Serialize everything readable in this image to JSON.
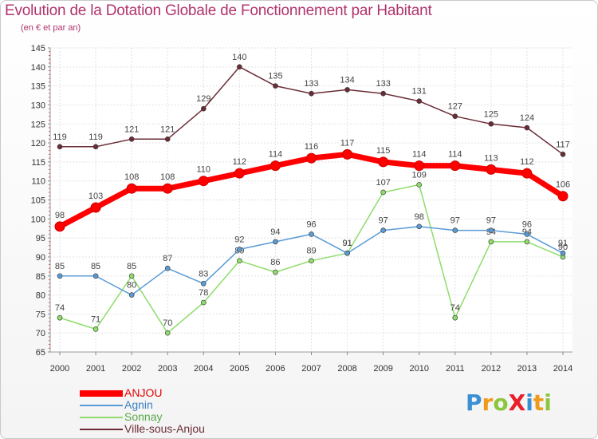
{
  "title": "Evolution de la Dotation Globale de Fonctionnement par Habitant",
  "subtitle": "(en € et par an)",
  "logo": {
    "text": "ProXiti",
    "letters": [
      {
        "ch": "P",
        "color": "#3b8fd3"
      },
      {
        "ch": "r",
        "color": "#f09a1c"
      },
      {
        "ch": "o",
        "color": "#8cc63f"
      },
      {
        "ch": "X",
        "color": "#e8202a"
      },
      {
        "ch": "i",
        "color": "#3b8fd3"
      },
      {
        "ch": "t",
        "color": "#f09a1c"
      },
      {
        "ch": "i",
        "color": "#8cc63f"
      }
    ]
  },
  "chart_data": {
    "type": "line",
    "title": "Evolution de la Dotation Globale de Fonctionnement par Habitant",
    "subtitle": "(en € et par an)",
    "xlabel": "",
    "ylabel": "",
    "x": [
      "2000",
      "2001",
      "2002",
      "2003",
      "2004",
      "2005",
      "2006",
      "2007",
      "2008",
      "2009",
      "2010",
      "2011",
      "2012",
      "2013",
      "2014"
    ],
    "ylim": [
      65,
      145
    ],
    "yticks": [
      65,
      70,
      75,
      80,
      85,
      90,
      95,
      100,
      105,
      110,
      115,
      120,
      125,
      130,
      135,
      140,
      145
    ],
    "grid": true,
    "legend_position": "bottom-left",
    "series": [
      {
        "name": "ANJOU",
        "color": "#ff0000",
        "values": [
          98,
          103,
          108,
          108,
          110,
          112,
          114,
          116,
          117,
          115,
          114,
          114,
          113,
          112,
          106
        ]
      },
      {
        "name": "Agnin",
        "color": "#5b9bd5",
        "values": [
          85,
          85,
          80,
          87,
          83,
          92,
          94,
          96,
          91,
          97,
          98,
          97,
          97,
          96,
          91
        ]
      },
      {
        "name": "Sonnay",
        "color": "#8fdc6a",
        "values": [
          74,
          71,
          85,
          70,
          78,
          89,
          86,
          89,
          91,
          107,
          109,
          74,
          94,
          94,
          90
        ]
      },
      {
        "name": "Ville-sous-Anjou",
        "color": "#6b2c35",
        "values": [
          119,
          119,
          121,
          121,
          129,
          140,
          135,
          133,
          134,
          133,
          131,
          127,
          125,
          124,
          117
        ]
      }
    ]
  }
}
